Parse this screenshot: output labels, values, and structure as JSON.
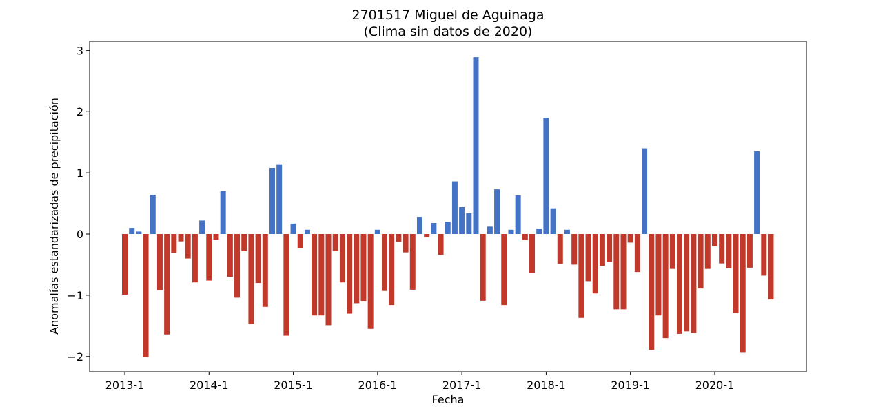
{
  "chart_data": {
    "type": "bar",
    "title": "2701517 Miguel de Aguinaga",
    "subtitle": "(Clima sin datos de 2020)",
    "xlabel": "Fecha",
    "ylabel": "Anomalías estandarizadas de precipitación",
    "x_tick_labels": [
      "2013-1",
      "2014-1",
      "2015-1",
      "2016-1",
      "2017-1",
      "2018-1",
      "2019-1",
      "2020-1"
    ],
    "y_ticks": [
      -2,
      -1,
      0,
      1,
      2,
      3
    ],
    "y_tick_labels": [
      "−2",
      "−1",
      "0",
      "1",
      "2",
      "3"
    ],
    "ylim": [
      -2.25,
      3.15
    ],
    "x_start": "2013-1",
    "values": [
      -0.99,
      0.1,
      0.04,
      -2.01,
      0.64,
      -0.92,
      -1.64,
      -0.31,
      -0.12,
      -0.4,
      -0.79,
      0.22,
      -0.76,
      -0.09,
      0.7,
      -0.7,
      -1.04,
      -0.28,
      -1.47,
      -0.8,
      -1.19,
      1.08,
      1.14,
      -1.66,
      0.17,
      -0.23,
      0.07,
      -1.33,
      -1.33,
      -1.49,
      -0.28,
      -0.79,
      -1.3,
      -1.13,
      -1.1,
      -1.55,
      0.07,
      -0.93,
      -1.16,
      -0.13,
      -0.3,
      -0.91,
      0.28,
      -0.05,
      0.18,
      -0.34,
      0.2,
      0.86,
      0.44,
      0.34,
      2.89,
      -1.09,
      0.12,
      0.73,
      -1.16,
      0.07,
      0.63,
      -0.1,
      -0.63,
      0.09,
      1.9,
      0.42,
      -0.49,
      0.07,
      -0.5,
      -1.37,
      -0.77,
      -0.97,
      -0.52,
      -0.45,
      -1.23,
      -1.23,
      -0.14,
      -0.62,
      1.4,
      -1.89,
      -1.33,
      -1.7,
      -0.57,
      -1.63,
      -1.59,
      -1.62,
      -0.89,
      -0.57,
      -0.2,
      -0.48,
      -0.56,
      -1.29,
      -1.94,
      -0.55,
      1.35,
      -0.68,
      -1.07
    ],
    "positive_color": "#4472c4",
    "negative_color": "#c0392b",
    "grid": false,
    "legend": "none"
  }
}
